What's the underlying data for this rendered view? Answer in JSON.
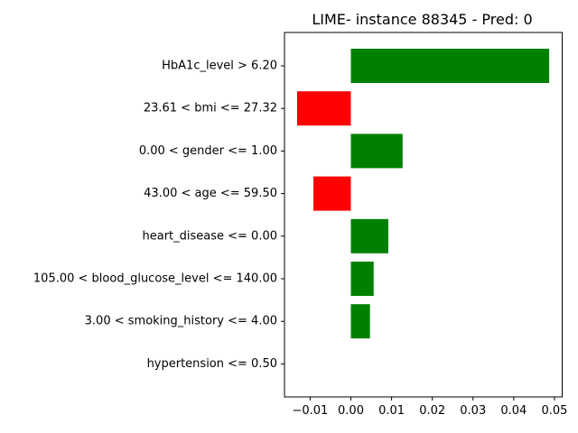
{
  "chart_data": {
    "type": "bar",
    "orientation": "horizontal",
    "title": "LIME- instance 88345 - Pred: 0",
    "xlabel": "",
    "ylabel": "",
    "xlim": [
      -0.0163,
      0.0519
    ],
    "xticks": [
      -0.01,
      0.0,
      0.01,
      0.02,
      0.03,
      0.04,
      0.05
    ],
    "xtick_labels": [
      "−0.01",
      "0.00",
      "0.01",
      "0.02",
      "0.03",
      "0.04",
      "0.05"
    ],
    "grid": false,
    "legend": "none",
    "categories": [
      "HbA1c_level > 6.20",
      "23.61 < bmi <= 27.32",
      "0.00 < gender <= 1.00",
      "43.00 < age <= 59.50",
      "heart_disease <= 0.00",
      "105.00 < blood_glucose_level <= 140.00",
      "3.00 < smoking_history <= 4.00",
      "hypertension <= 0.50"
    ],
    "values": [
      0.0487,
      -0.0132,
      0.0127,
      -0.0092,
      0.0092,
      0.0056,
      0.0047,
      0.0
    ],
    "colors": {
      "positive": "#008000",
      "negative": "#ff0000"
    }
  }
}
